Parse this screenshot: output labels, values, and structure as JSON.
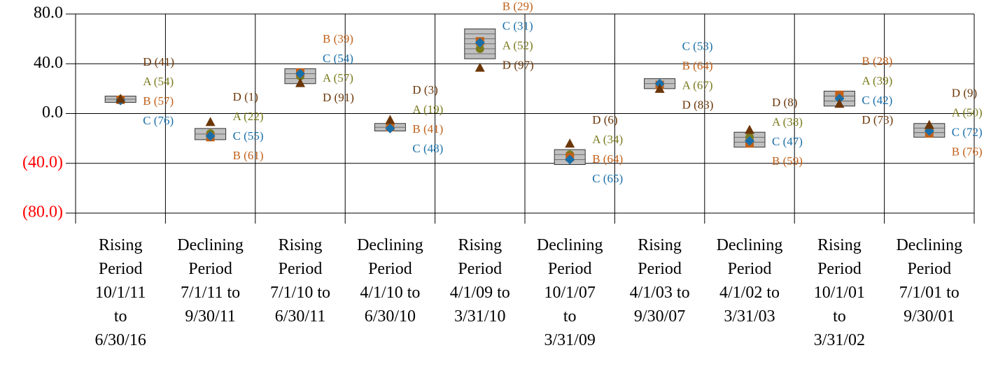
{
  "chart_data": {
    "type": "box",
    "categories": [
      [
        "Rising",
        "Period",
        "10/1/11",
        "to",
        "6/30/16"
      ],
      [
        "Declining",
        "Period",
        "7/1/11 to",
        "9/30/11"
      ],
      [
        "Rising",
        "Period",
        "7/1/10 to",
        "6/30/11"
      ],
      [
        "Declining",
        "Period",
        "4/1/10 to",
        "6/30/10"
      ],
      [
        "Rising",
        "Period",
        "4/1/09 to",
        "3/31/10"
      ],
      [
        "Declining",
        "Period",
        "10/1/07",
        "to",
        "3/31/09"
      ],
      [
        "Rising",
        "Period",
        "4/1/03 to",
        "9/30/07"
      ],
      [
        "Declining",
        "Period",
        "4/1/02 to",
        "3/31/03"
      ],
      [
        "Rising",
        "Period",
        "10/1/01",
        "to",
        "3/31/02"
      ],
      [
        "Declining",
        "Period",
        "7/1/01 to",
        "9/30/01"
      ]
    ],
    "box_low": [
      9,
      -21,
      24,
      -14,
      44,
      -41,
      20,
      -27,
      6,
      -19
    ],
    "box_high": [
      14,
      -12,
      36,
      -8,
      68,
      -29,
      28,
      -15,
      18,
      -8
    ],
    "box_color": "#c0c0c0",
    "series": [
      {
        "name": "A",
        "color": "#7a7a1e",
        "marker": "circle",
        "values": [
          11.5,
          -16,
          30,
          -9,
          52,
          -33,
          22,
          -19,
          13,
          -12
        ],
        "labels": [
          "A (54)",
          "A (22)",
          "A (57)",
          "A (19)",
          "A (52)",
          "A (34)",
          "A (67)",
          "A (38)",
          "A (39)",
          "A (50)"
        ]
      },
      {
        "name": "B",
        "color": "#c0601a",
        "marker": "square",
        "values": [
          11,
          -19,
          33,
          -11,
          58,
          -35,
          23,
          -24,
          15,
          -16
        ],
        "labels": [
          "B (57)",
          "B (61)",
          "B (39)",
          "B (41)",
          "B (29)",
          "B (64)",
          "B (64)",
          "B (59)",
          "B (28)",
          "B (76)"
        ]
      },
      {
        "name": "C",
        "color": "#1a6fa8",
        "marker": "diamond",
        "values": [
          10.5,
          -18,
          32,
          -12,
          57,
          -37,
          24,
          -22,
          12,
          -14
        ],
        "labels": [
          "C (76)",
          "C (55)",
          "C (54)",
          "C (48)",
          "C (31)",
          "C (65)",
          "C (53)",
          "C (47)",
          "C (42)",
          "C (72)"
        ]
      },
      {
        "name": "D",
        "color": "#6b3608",
        "marker": "triangle",
        "values": [
          12,
          -6.7,
          24.6,
          -5,
          37,
          -24,
          20,
          -13,
          8,
          -9
        ],
        "labels": [
          "D (41)",
          "D (1)",
          "D (91)",
          "D (3)",
          "D (97)",
          "D (6)",
          "D (83)",
          "D (8)",
          "D (73)",
          "D (9)"
        ]
      }
    ],
    "ylim": [
      -80,
      80
    ],
    "yticks": [
      {
        "value": 80,
        "label": "80.0"
      },
      {
        "value": 40,
        "label": "40.0"
      },
      {
        "value": 0,
        "label": "0.0"
      },
      {
        "value": -40,
        "label": "(40.0)"
      },
      {
        "value": -80,
        "label": "(80.0)"
      }
    ],
    "negative_tick_color": "#ff0000",
    "grid": true
  }
}
